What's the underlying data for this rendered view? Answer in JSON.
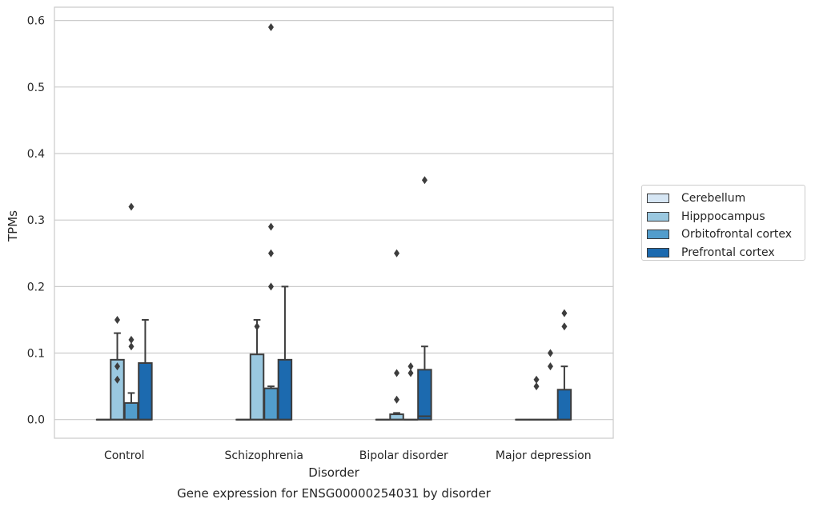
{
  "chart_data": {
    "type": "box",
    "title": "Gene expression for ENSG00000254031 by disorder",
    "xlabel": "Disorder",
    "ylabel": "TPMs",
    "ylim": [
      -0.028,
      0.62
    ],
    "yticks": [
      0.0,
      0.1,
      0.2,
      0.3,
      0.4,
      0.5,
      0.6
    ],
    "ytick_labels": [
      "0.0",
      "0.1",
      "0.2",
      "0.3",
      "0.4",
      "0.5",
      "0.6"
    ],
    "categories": [
      "Control",
      "Schizophrenia",
      "Bipolar disorder",
      "Major depression"
    ],
    "grid": "horizontal",
    "legend_position": "right",
    "series": [
      {
        "name": "Cerebellum",
        "color": "#d6e6f4",
        "boxes": [
          {
            "q1": 0,
            "median": 0,
            "q3": 0,
            "whislo": 0,
            "whishi": 0,
            "fliers": []
          },
          {
            "q1": 0,
            "median": 0,
            "q3": 0,
            "whislo": 0,
            "whishi": 0,
            "fliers": []
          },
          {
            "q1": 0,
            "median": 0,
            "q3": 0,
            "whislo": 0,
            "whishi": 0,
            "fliers": []
          },
          {
            "q1": 0,
            "median": 0,
            "q3": 0,
            "whislo": 0,
            "whishi": 0,
            "fliers": []
          }
        ]
      },
      {
        "name": "Hipppocampus",
        "color": "#9ac8e0",
        "boxes": [
          {
            "q1": 0,
            "median": 0,
            "q3": 0.09,
            "whislo": 0,
            "whishi": 0.13,
            "fliers": [
              0.15,
              0.08,
              0.06
            ]
          },
          {
            "q1": 0,
            "median": 0,
            "q3": 0.098,
            "whislo": 0,
            "whishi": 0.15,
            "fliers": [
              0.14
            ]
          },
          {
            "q1": 0,
            "median": 0,
            "q3": 0.008,
            "whislo": 0,
            "whishi": 0.01,
            "fliers": [
              0.25,
              0.07,
              0.03
            ]
          },
          {
            "q1": 0,
            "median": 0,
            "q3": 0,
            "whislo": 0,
            "whishi": 0,
            "fliers": [
              0.06,
              0.05
            ]
          }
        ]
      },
      {
        "name": "Orbitofrontal cortex",
        "color": "#529dcc",
        "boxes": [
          {
            "q1": 0,
            "median": 0,
            "q3": 0.025,
            "whislo": 0,
            "whishi": 0.04,
            "fliers": [
              0.32,
              0.12,
              0.11
            ]
          },
          {
            "q1": 0,
            "median": 0,
            "q3": 0.047,
            "whislo": 0,
            "whishi": 0.05,
            "fliers": [
              0.59,
              0.29,
              0.25,
              0.2
            ]
          },
          {
            "q1": 0,
            "median": 0,
            "q3": 0,
            "whislo": 0,
            "whishi": 0,
            "fliers": [
              0.08,
              0.07
            ]
          },
          {
            "q1": 0,
            "median": 0,
            "q3": 0,
            "whislo": 0,
            "whishi": 0,
            "fliers": [
              0.1,
              0.08
            ]
          }
        ]
      },
      {
        "name": "Prefrontal cortex",
        "color": "#1c6aaf",
        "boxes": [
          {
            "q1": 0,
            "median": 0,
            "q3": 0.085,
            "whislo": 0,
            "whishi": 0.15,
            "fliers": []
          },
          {
            "q1": 0,
            "median": 0,
            "q3": 0.09,
            "whislo": 0,
            "whishi": 0.2,
            "fliers": []
          },
          {
            "q1": 0,
            "median": 0.005,
            "q3": 0.075,
            "whislo": 0,
            "whishi": 0.11,
            "fliers": [
              0.36
            ]
          },
          {
            "q1": 0,
            "median": 0,
            "q3": 0.045,
            "whislo": 0,
            "whishi": 0.08,
            "fliers": [
              0.16,
              0.14
            ]
          }
        ]
      }
    ]
  }
}
